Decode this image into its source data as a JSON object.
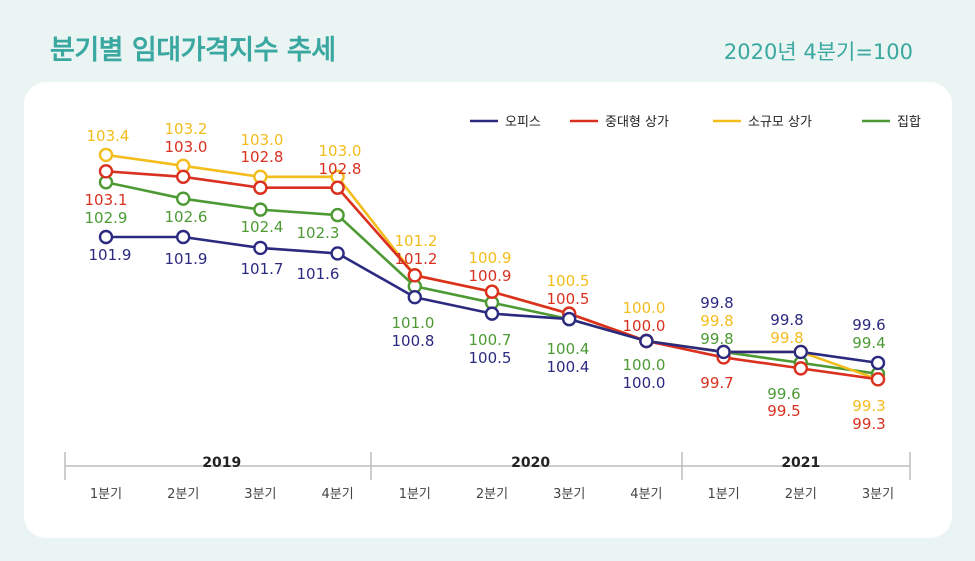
{
  "header": {
    "title": "분기별 임대가격지수 추세",
    "base_note": "2020년 4분기=100"
  },
  "chart_data": {
    "type": "line",
    "title": "분기별 임대가격지수 추세",
    "years": [
      {
        "label": "2019",
        "span": [
          0,
          3
        ]
      },
      {
        "label": "2020",
        "span": [
          4,
          7
        ]
      },
      {
        "label": "2021",
        "span": [
          8,
          10
        ]
      }
    ],
    "categories": [
      "1분기",
      "2분기",
      "3분기",
      "4분기",
      "1분기",
      "2분기",
      "3분기",
      "4분기",
      "1분기",
      "2분기",
      "3분기"
    ],
    "ylim": [
      99.2,
      103.6
    ],
    "grid": false,
    "legend_position": "top-right",
    "series": [
      {
        "name": "오피스",
        "color": "#2b2a80",
        "values": [
          101.9,
          101.9,
          101.7,
          101.6,
          100.8,
          100.5,
          100.4,
          100.0,
          99.8,
          99.8,
          99.6
        ]
      },
      {
        "name": "중대형 상가",
        "color": "#d9301f",
        "values": [
          103.1,
          103.0,
          102.8,
          102.8,
          101.2,
          100.9,
          100.5,
          100.0,
          99.7,
          99.5,
          99.3
        ]
      },
      {
        "name": "소규모 상가",
        "color": "#f2bd1d",
        "values": [
          103.4,
          103.2,
          103.0,
          103.0,
          101.2,
          100.9,
          100.5,
          100.0,
          99.8,
          99.8,
          99.3
        ]
      },
      {
        "name": "집합",
        "color": "#4d9a35",
        "values": [
          102.9,
          102.6,
          102.4,
          102.3,
          101.0,
          100.7,
          100.4,
          100.0,
          99.8,
          99.6,
          99.4
        ]
      }
    ]
  }
}
